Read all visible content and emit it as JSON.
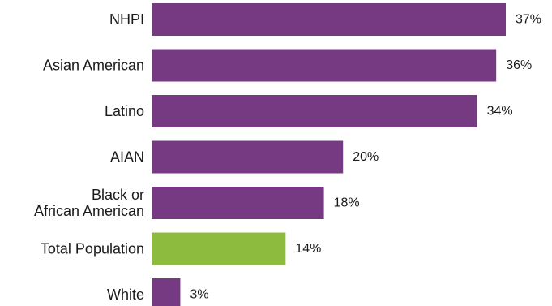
{
  "chart_data": {
    "type": "bar",
    "orientation": "horizontal",
    "title": "",
    "xlabel": "",
    "ylabel": "",
    "xlim": [
      0,
      37
    ],
    "grid": false,
    "legend": "none",
    "categories": [
      "NHPI",
      "Asian American",
      "Latino",
      "AIAN",
      "Black or African American",
      "Total Population",
      "White"
    ],
    "category_lines": [
      [
        "NHPI"
      ],
      [
        "Asian American"
      ],
      [
        "Latino"
      ],
      [
        "AIAN"
      ],
      [
        "Black or",
        "African American"
      ],
      [
        "Total Population"
      ],
      [
        "White"
      ]
    ],
    "values": [
      37,
      36,
      34,
      20,
      18,
      14,
      3
    ],
    "value_labels": [
      "37%",
      "36%",
      "34%",
      "20%",
      "18%",
      "14%",
      "3%"
    ],
    "colors": {
      "default": "#763a83",
      "highlight": "#8cbb3d"
    },
    "highlight_category": "Total Population"
  }
}
